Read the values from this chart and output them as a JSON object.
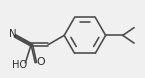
{
  "bg_color": "#f0f0f0",
  "line_color": "#4a4a4a",
  "line_width": 1.15,
  "text_color": "#2a2a2a",
  "font_size": 6.8,
  "xlim": [
    0.0,
    14.0
  ],
  "ylim": [
    1.5,
    9.0
  ]
}
